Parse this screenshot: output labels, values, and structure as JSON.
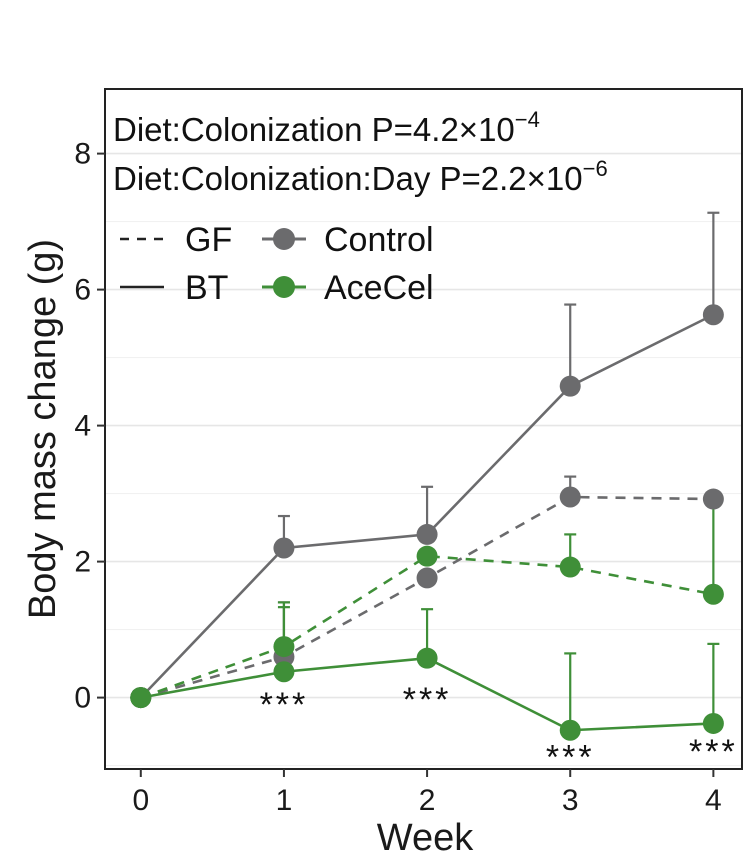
{
  "chart_data": {
    "type": "line",
    "xlabel": "Week",
    "ylabel": "Body mass change (g)",
    "x": [
      0,
      1,
      2,
      3,
      4
    ],
    "xticks": [
      "0",
      "1",
      "2",
      "3",
      "4"
    ],
    "yticks": [
      "0",
      "2",
      "4",
      "6",
      "8"
    ],
    "xlim": [
      -0.25,
      4.2
    ],
    "ylim": [
      -1.05,
      8.95
    ],
    "grid": true,
    "annotations": {
      "line1": {
        "prefix": "Diet:Colonization P=4.2×10",
        "exponent": "−4"
      },
      "line2": {
        "prefix": "Diet:Colonization:Day P=2.2×10",
        "exponent": "−6"
      }
    },
    "legend": {
      "colonization": [
        {
          "label": "GF",
          "linestyle": "dashed"
        },
        {
          "label": "BT",
          "linestyle": "solid"
        }
      ],
      "diet": [
        {
          "label": "Control",
          "color": "#6b6b6d"
        },
        {
          "label": "AceCel",
          "color": "#3f8f38"
        }
      ]
    },
    "series": [
      {
        "name": "BT Control",
        "diet": "Control",
        "colonization": "BT",
        "color": "#6b6b6d",
        "linestyle": "solid",
        "values": [
          0,
          2.2,
          2.4,
          4.58,
          5.63
        ],
        "errors": [
          0,
          0.47,
          0.7,
          1.2,
          1.5
        ]
      },
      {
        "name": "GF Control",
        "diet": "Control",
        "colonization": "GF",
        "color": "#6b6b6d",
        "linestyle": "dashed",
        "values": [
          0,
          0.6,
          1.76,
          2.95,
          2.92
        ],
        "errors": [
          0,
          0.8,
          0,
          0.3,
          0
        ]
      },
      {
        "name": "GF AceCel",
        "diet": "AceCel",
        "colonization": "GF",
        "color": "#3f8f38",
        "linestyle": "dashed",
        "values": [
          0,
          0.75,
          2.08,
          1.92,
          1.52
        ],
        "errors": [
          0,
          0.65,
          0,
          0.48,
          1.38
        ]
      },
      {
        "name": "BT AceCel",
        "diet": "AceCel",
        "colonization": "BT",
        "color": "#3f8f38",
        "linestyle": "solid",
        "values": [
          0,
          0.38,
          0.58,
          -0.48,
          -0.38
        ],
        "errors": [
          0,
          0.95,
          0.72,
          1.13,
          1.17
        ]
      }
    ],
    "significance": [
      {
        "x": 1,
        "label": "***"
      },
      {
        "x": 2,
        "label": "***"
      },
      {
        "x": 3,
        "label": "***"
      },
      {
        "x": 4,
        "label": "***"
      }
    ]
  }
}
